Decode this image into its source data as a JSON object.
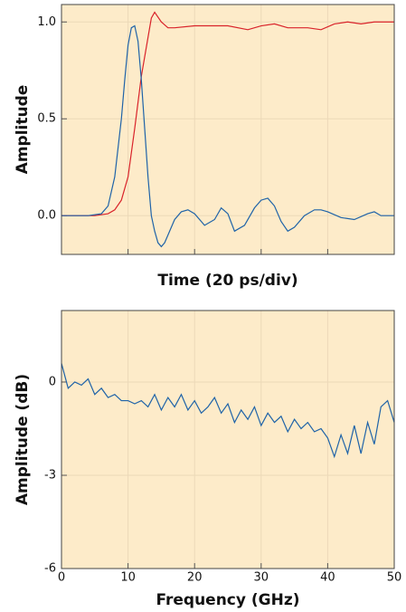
{
  "chart_data": [
    {
      "type": "line",
      "xlabel": "Time (20 ps/div)",
      "ylabel": "Amplitude",
      "xlim": [
        0,
        100
      ],
      "xticks": [
        20,
        40,
        60,
        80
      ],
      "xtick_labels": false,
      "ylim": [
        -0.2,
        1.09
      ],
      "yticks": [
        {
          "value": 0,
          "label": "0.0"
        },
        0.5,
        {
          "value": 1,
          "label": "1.0"
        }
      ],
      "grid": true,
      "series": [
        {
          "color": "#d9232a",
          "x": [
            0,
            10,
            14,
            16,
            18,
            20,
            22,
            24,
            26,
            27,
            28,
            30,
            32,
            34,
            40,
            50,
            56,
            60,
            64,
            68,
            74,
            78,
            82,
            86,
            90,
            94,
            100
          ],
          "values": [
            0,
            0,
            0.01,
            0.03,
            0.08,
            0.2,
            0.45,
            0.72,
            0.92,
            1.02,
            1.05,
            1.0,
            0.97,
            0.97,
            0.98,
            0.98,
            0.96,
            0.98,
            0.99,
            0.97,
            0.97,
            0.96,
            0.99,
            1.0,
            0.99,
            1.0,
            1.0
          ]
        },
        {
          "color": "#1f63a8",
          "x": [
            0,
            8,
            12,
            14,
            16,
            18,
            19,
            20,
            21,
            22,
            23,
            24,
            25,
            26,
            27,
            28,
            29,
            30,
            31,
            32,
            34,
            36,
            38,
            40,
            43,
            46,
            48,
            50,
            52,
            55,
            58,
            60,
            62,
            64,
            66,
            68,
            70,
            73,
            76,
            78,
            80,
            84,
            88,
            92,
            94,
            96,
            100
          ],
          "values": [
            0,
            0,
            0.01,
            0.05,
            0.2,
            0.5,
            0.7,
            0.88,
            0.97,
            0.98,
            0.9,
            0.7,
            0.45,
            0.2,
            0.0,
            -0.08,
            -0.14,
            -0.16,
            -0.14,
            -0.1,
            -0.02,
            0.02,
            0.03,
            0.01,
            -0.05,
            -0.02,
            0.04,
            0.01,
            -0.08,
            -0.05,
            0.04,
            0.08,
            0.09,
            0.05,
            -0.03,
            -0.08,
            -0.06,
            0.0,
            0.03,
            0.03,
            0.02,
            -0.01,
            -0.02,
            0.01,
            0.02,
            0.0,
            0.0
          ]
        }
      ]
    },
    {
      "type": "line",
      "xlabel": "Frequency (GHz)",
      "ylabel": "Amplitude (dB)",
      "xlim": [
        0,
        50
      ],
      "xticks": [
        0,
        10,
        20,
        30,
        40,
        50
      ],
      "ylim": [
        -6,
        2.3
      ],
      "yticks": [
        -6,
        -3,
        0
      ],
      "grid": true,
      "series": [
        {
          "color": "#1f63a8",
          "x": [
            0,
            1,
            2,
            3,
            4,
            5,
            6,
            7,
            8,
            9,
            10,
            11,
            12,
            13,
            14,
            15,
            16,
            17,
            18,
            19,
            20,
            21,
            22,
            23,
            24,
            25,
            26,
            27,
            28,
            29,
            30,
            31,
            32,
            33,
            34,
            35,
            36,
            37,
            38,
            39,
            40,
            41,
            42,
            43,
            44,
            45,
            46,
            47,
            48,
            49,
            50
          ],
          "values": [
            0.6,
            -0.2,
            0.0,
            -0.1,
            0.1,
            -0.4,
            -0.2,
            -0.5,
            -0.4,
            -0.6,
            -0.6,
            -0.7,
            -0.6,
            -0.8,
            -0.4,
            -0.9,
            -0.5,
            -0.8,
            -0.4,
            -0.9,
            -0.6,
            -1.0,
            -0.8,
            -0.5,
            -1.0,
            -0.7,
            -1.3,
            -0.9,
            -1.2,
            -0.8,
            -1.4,
            -1.0,
            -1.3,
            -1.1,
            -1.6,
            -1.2,
            -1.5,
            -1.3,
            -1.6,
            -1.5,
            -1.8,
            -2.4,
            -1.7,
            -2.3,
            -1.4,
            -2.3,
            -1.3,
            -2.0,
            -0.8,
            -0.6,
            -1.3
          ]
        }
      ]
    }
  ]
}
